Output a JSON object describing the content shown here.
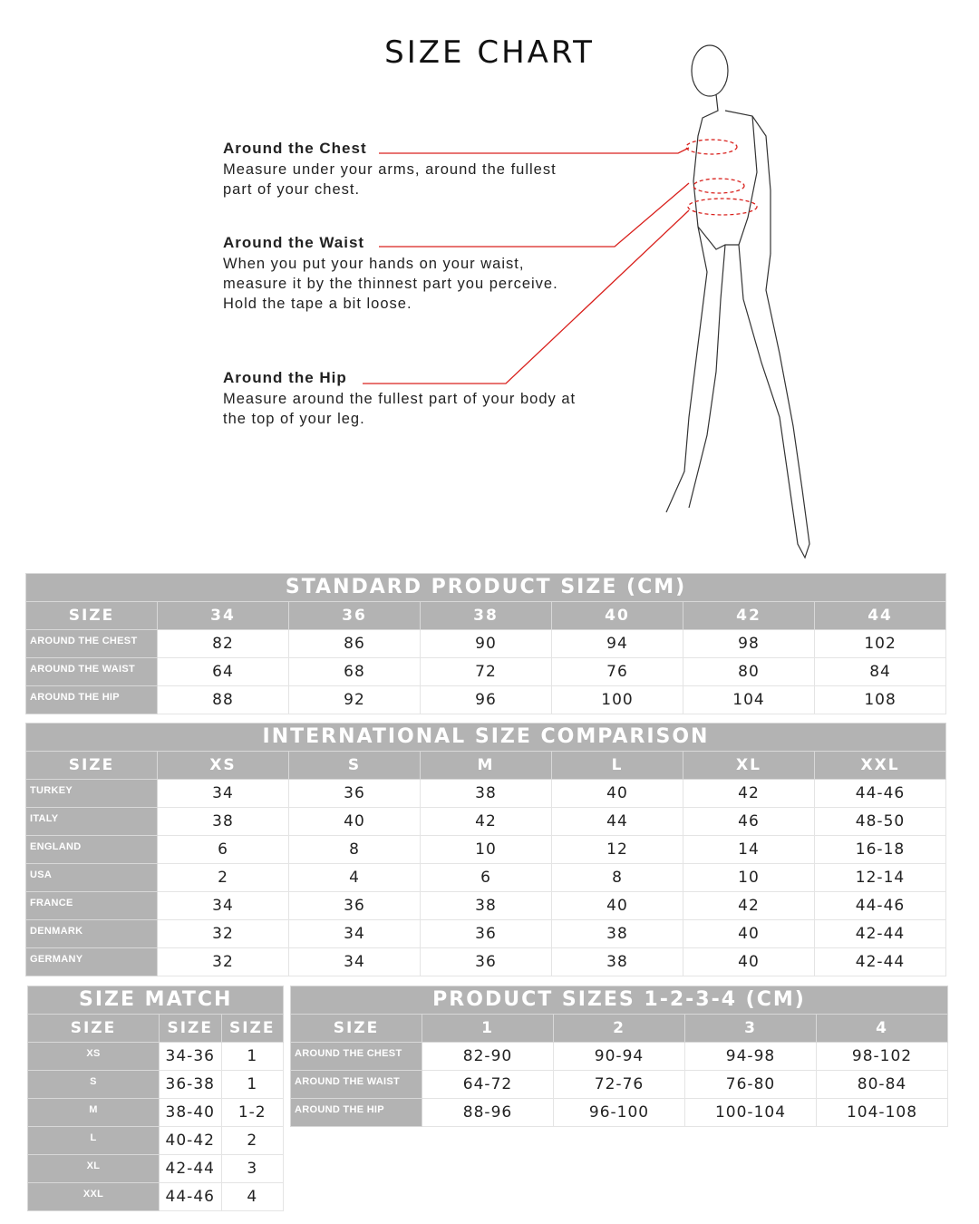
{
  "title": "SIZE CHART",
  "measurements": [
    {
      "label": "Around the Chest",
      "text": "Measure under your arms, around the fullest part of your chest."
    },
    {
      "label": "Around the Waist",
      "text": "When you put your hands on your waist, measure it by the thinnest part you perceive. Hold the tape a bit loose."
    },
    {
      "label": "Around the Hip",
      "text": "Measure around the fullest part of your body at the top of your leg."
    }
  ],
  "colors": {
    "header_gray": "#b3b3b3",
    "accent_red": "#d9211d"
  },
  "tables": {
    "standard": {
      "title": "STANDARD PRODUCT SIZE (CM)",
      "headers": [
        "SIZE",
        "34",
        "36",
        "38",
        "40",
        "42",
        "44"
      ],
      "rows": [
        [
          "AROUND THE CHEST",
          "82",
          "86",
          "90",
          "94",
          "98",
          "102"
        ],
        [
          "AROUND THE WAIST",
          "64",
          "68",
          "72",
          "76",
          "80",
          "84"
        ],
        [
          "AROUND THE HIP",
          "88",
          "92",
          "96",
          "100",
          "104",
          "108"
        ]
      ]
    },
    "international": {
      "title": "INTERNATIONAL SIZE COMPARISON",
      "headers": [
        "SIZE",
        "XS",
        "S",
        "M",
        "L",
        "XL",
        "XXL"
      ],
      "rows": [
        [
          "TURKEY",
          "34",
          "36",
          "38",
          "40",
          "42",
          "44-46"
        ],
        [
          "ITALY",
          "38",
          "40",
          "42",
          "44",
          "46",
          "48-50"
        ],
        [
          "ENGLAND",
          "6",
          "8",
          "10",
          "12",
          "14",
          "16-18"
        ],
        [
          "USA",
          "2",
          "4",
          "6",
          "8",
          "10",
          "12-14"
        ],
        [
          "FRANCE",
          "34",
          "36",
          "38",
          "40",
          "42",
          "44-46"
        ],
        [
          "DENMARK",
          "32",
          "34",
          "36",
          "38",
          "40",
          "42-44"
        ],
        [
          "GERMANY",
          "32",
          "34",
          "36",
          "38",
          "40",
          "42-44"
        ]
      ]
    },
    "match": {
      "title": "SIZE MATCH",
      "headers": [
        "SIZE",
        "SIZE",
        "SIZE"
      ],
      "rows": [
        [
          "XS",
          "34-36",
          "1"
        ],
        [
          "S",
          "36-38",
          "1"
        ],
        [
          "M",
          "38-40",
          "1-2"
        ],
        [
          "L",
          "40-42",
          "2"
        ],
        [
          "XL",
          "42-44",
          "3"
        ],
        [
          "XXL",
          "44-46",
          "4"
        ]
      ]
    },
    "product": {
      "title": "PRODUCT SIZES 1-2-3-4 (CM)",
      "headers": [
        "SIZE",
        "1",
        "2",
        "3",
        "4"
      ],
      "rows": [
        [
          "AROUND THE CHEST",
          "82-90",
          "90-94",
          "94-98",
          "98-102"
        ],
        [
          "AROUND THE WAIST",
          "64-72",
          "72-76",
          "76-80",
          "80-84"
        ],
        [
          "AROUND THE HIP",
          "88-96",
          "96-100",
          "100-104",
          "104-108"
        ]
      ]
    }
  }
}
